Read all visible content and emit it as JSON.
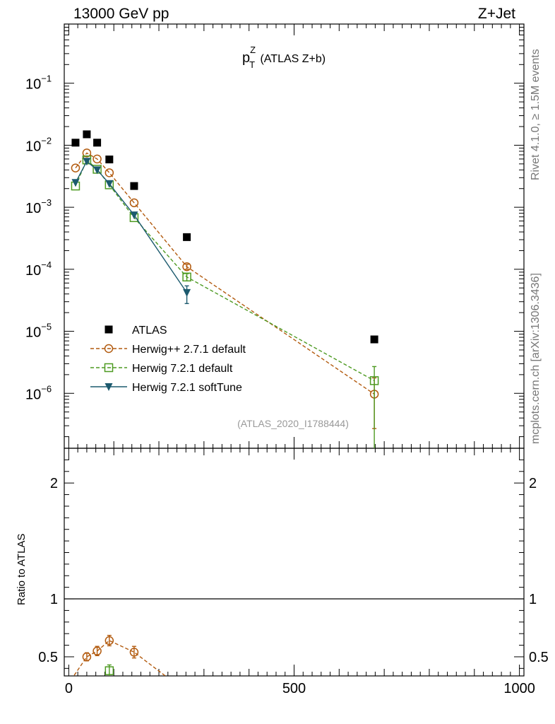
{
  "header": {
    "left": "13000 GeV pp",
    "right": "Z+Jet"
  },
  "side_labels": {
    "rivet": "Rivet 4.1.0, ≥ 1.5M events",
    "mcplots": "mcplots.cern.ch [arXiv:1306.3436]"
  },
  "chart_data": [
    {
      "type": "scatter",
      "panel": "main",
      "title": {
        "base": "p",
        "sup": "Z",
        "sub": "T",
        "rest": " (ATLAS Z+b)"
      },
      "xlim": [
        -10,
        1010
      ],
      "ylim": [
        1.3e-07,
        0.9
      ],
      "yscale": "log",
      "ytick_labels": [
        {
          "value": 0.1,
          "base": "10",
          "exp": "−1"
        },
        {
          "value": 0.01,
          "base": "10",
          "exp": "−2"
        },
        {
          "value": 0.001,
          "base": "10",
          "exp": "−3"
        },
        {
          "value": 0.0001,
          "base": "10",
          "exp": "−4"
        },
        {
          "value": 1e-05,
          "base": "10",
          "exp": "−5"
        },
        {
          "value": 1e-06,
          "base": "10",
          "exp": "−6"
        }
      ],
      "watermark": "(ATLAS_2020_I1788444)",
      "series": [
        {
          "name": "ATLAS",
          "marker": "square-filled",
          "color": "#000000",
          "line": "none",
          "x": [
            15,
            40,
            63,
            90,
            145,
            262,
            678
          ],
          "y": [
            0.011,
            0.015,
            0.011,
            0.0059,
            0.0022,
            0.00033,
            7.4e-06
          ]
        },
        {
          "name": "Herwig++ 2.7.1 default",
          "marker": "circle-open",
          "color": "#b25a0e",
          "line": "dashed",
          "x": [
            15,
            40,
            63,
            90,
            145,
            262,
            678
          ],
          "y": [
            0.0043,
            0.0075,
            0.006,
            0.0036,
            0.00118,
            0.00011,
            9.7e-07
          ],
          "err_low": [
            null,
            null,
            null,
            null,
            null,
            1e-05,
            7e-07
          ],
          "err_high": [
            null,
            null,
            null,
            null,
            null,
            1e-05,
            8e-07
          ]
        },
        {
          "name": "Herwig 7.2.1 default",
          "marker": "square-open",
          "color": "#4d9a21",
          "line": "dashed",
          "x": [
            15,
            40,
            63,
            90,
            145,
            262,
            678
          ],
          "y": [
            0.0022,
            0.0058,
            0.0041,
            0.0023,
            0.00068,
            7.5e-05,
            1.6e-06
          ],
          "err_low": [
            null,
            null,
            null,
            null,
            null,
            1e-05,
            1.5e-06
          ],
          "err_high": [
            null,
            null,
            null,
            null,
            null,
            1e-05,
            1.1e-06
          ]
        },
        {
          "name": "Herwig 7.2.1 softTune",
          "marker": "triangle-down-filled",
          "color": "#1c5a6e",
          "line": "solid",
          "x": [
            15,
            40,
            63,
            90,
            145,
            262
          ],
          "y": [
            0.0025,
            0.0055,
            0.004,
            0.0024,
            0.00075,
            4.2e-05
          ],
          "err_low": [
            null,
            null,
            null,
            null,
            null,
            1.4e-05
          ],
          "err_high": [
            null,
            null,
            null,
            null,
            null,
            1.2e-05
          ]
        }
      ]
    },
    {
      "type": "scatter",
      "panel": "ratio",
      "ylabel": "Ratio to ATLAS",
      "xlim": [
        -10,
        1010
      ],
      "ylim": [
        0.335,
        2.3
      ],
      "xtick_labels": [
        "0",
        "500",
        "1000"
      ],
      "ytick_labels": [
        "0.5",
        "1",
        "2"
      ],
      "reference_line": 1,
      "series": [
        {
          "name": "Herwig++ 2.7.1 default",
          "marker": "circle-open",
          "color": "#b25a0e",
          "line": "dashed",
          "x": [
            -2,
            40,
            63,
            90,
            145,
            216
          ],
          "y": [
            0.26,
            0.5,
            0.55,
            0.64,
            0.54,
            0.33
          ],
          "has_marker": [
            false,
            true,
            true,
            true,
            true,
            false
          ],
          "err": [
            null,
            0.035,
            0.04,
            0.045,
            0.05,
            null
          ]
        },
        {
          "name": "Herwig 7.2.1 default",
          "marker": "square-open",
          "color": "#4d9a21",
          "line": "dashed",
          "x": [
            90
          ],
          "y": [
            0.38
          ],
          "has_marker": [
            true
          ],
          "err": [
            0.05
          ]
        }
      ]
    }
  ]
}
